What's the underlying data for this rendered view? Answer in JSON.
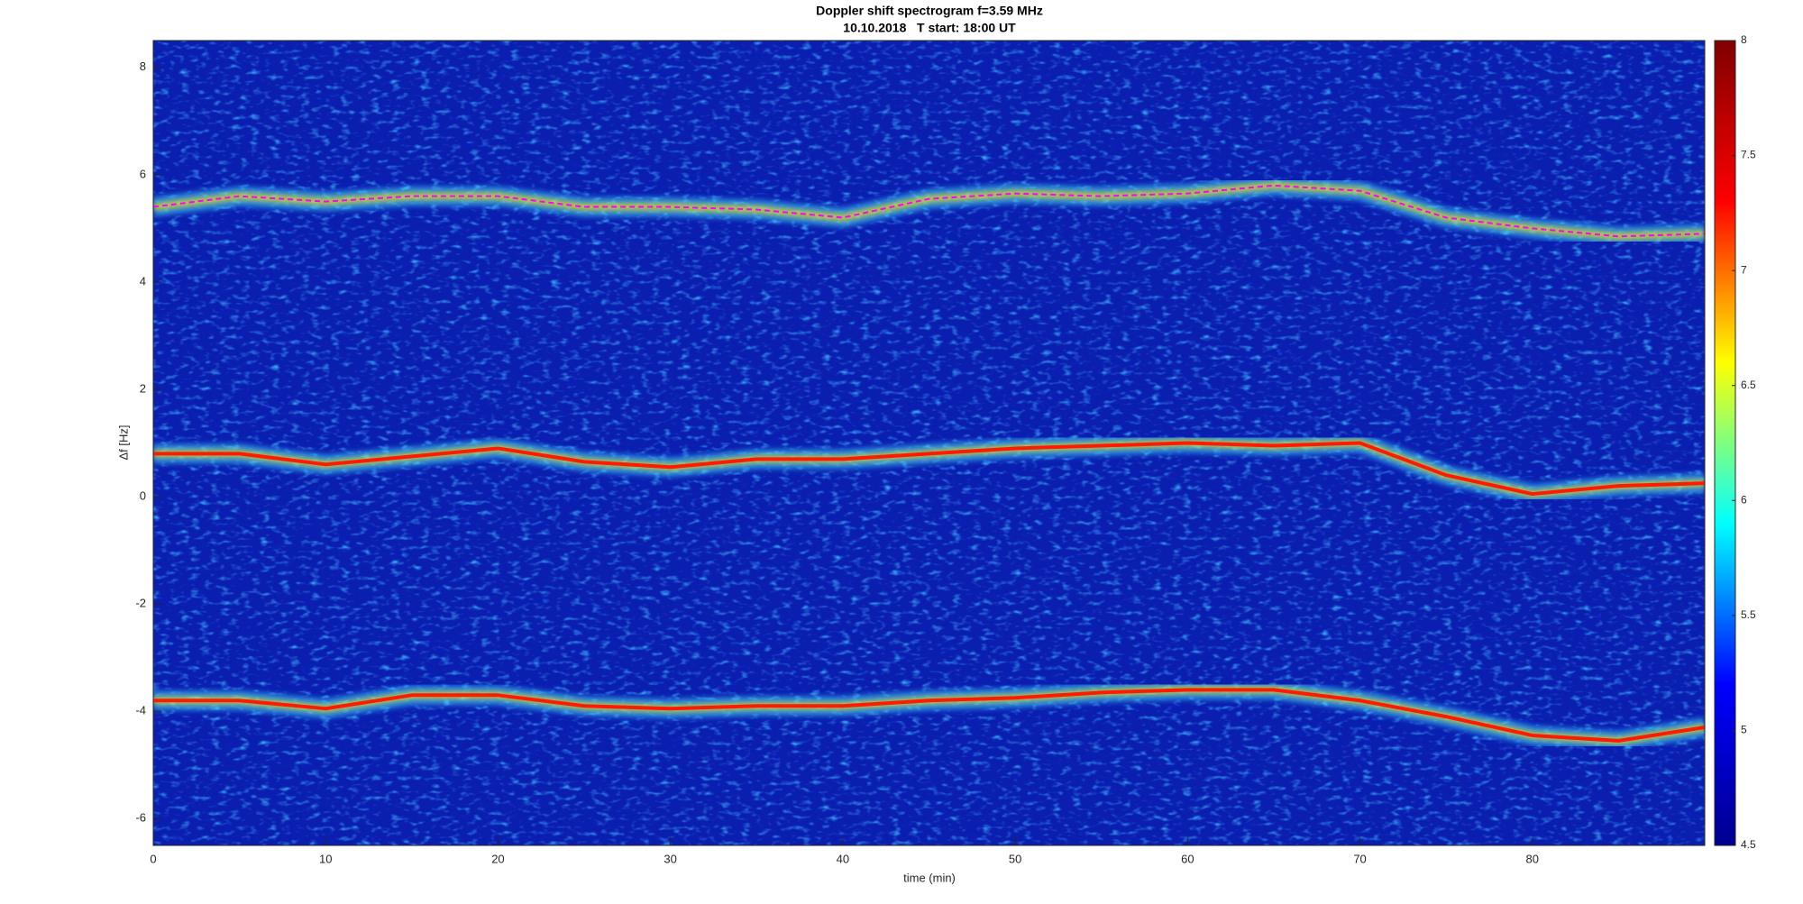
{
  "chart_data": {
    "type": "spectrogram",
    "title": "Doppler shift spectrogram f=3.59 MHz",
    "subtitle": "10.10.2018   T start: 18:00 UT",
    "x_label": "time (min)",
    "y_label": "Δf [Hz]",
    "xlim": [
      0,
      90
    ],
    "ylim": [
      -6.5,
      8.5
    ],
    "xticks": [
      0,
      10,
      20,
      30,
      40,
      50,
      60,
      70,
      80
    ],
    "yticks": [
      -6,
      -4,
      -2,
      0,
      2,
      4,
      6,
      8
    ],
    "clim": [
      4.5,
      8
    ],
    "cticks": [
      4.5,
      5,
      5.5,
      6,
      6.5,
      7,
      7.5,
      8
    ],
    "colormap": [
      "#00008f",
      "#0000ff",
      "#00ffff",
      "#ffff00",
      "#ff0000",
      "#800000"
    ],
    "x": [
      0,
      5,
      10,
      15,
      20,
      25,
      30,
      35,
      40,
      45,
      50,
      55,
      60,
      65,
      70,
      75,
      80,
      85,
      90
    ],
    "series": [
      {
        "color": "#ff00ff",
        "dashed": true,
        "values": [
          5.4,
          5.6,
          5.5,
          5.6,
          5.6,
          5.4,
          5.4,
          5.35,
          5.2,
          5.55,
          5.65,
          5.6,
          5.65,
          5.8,
          5.7,
          5.2,
          5.0,
          4.85,
          4.9
        ]
      },
      {
        "color": "#ff1a00",
        "dashed": false,
        "values": [
          0.8,
          0.8,
          0.6,
          0.75,
          0.9,
          0.65,
          0.55,
          0.7,
          0.7,
          0.8,
          0.9,
          0.95,
          1.0,
          0.95,
          1.0,
          0.4,
          0.05,
          0.2,
          0.25
        ]
      },
      {
        "color": "#ff1a00",
        "dashed": false,
        "values": [
          -3.8,
          -3.8,
          -3.95,
          -3.7,
          -3.7,
          -3.9,
          -3.95,
          -3.9,
          -3.9,
          -3.8,
          -3.75,
          -3.65,
          -3.6,
          -3.6,
          -3.8,
          -4.1,
          -4.45,
          -4.55,
          -4.3
        ]
      }
    ]
  }
}
